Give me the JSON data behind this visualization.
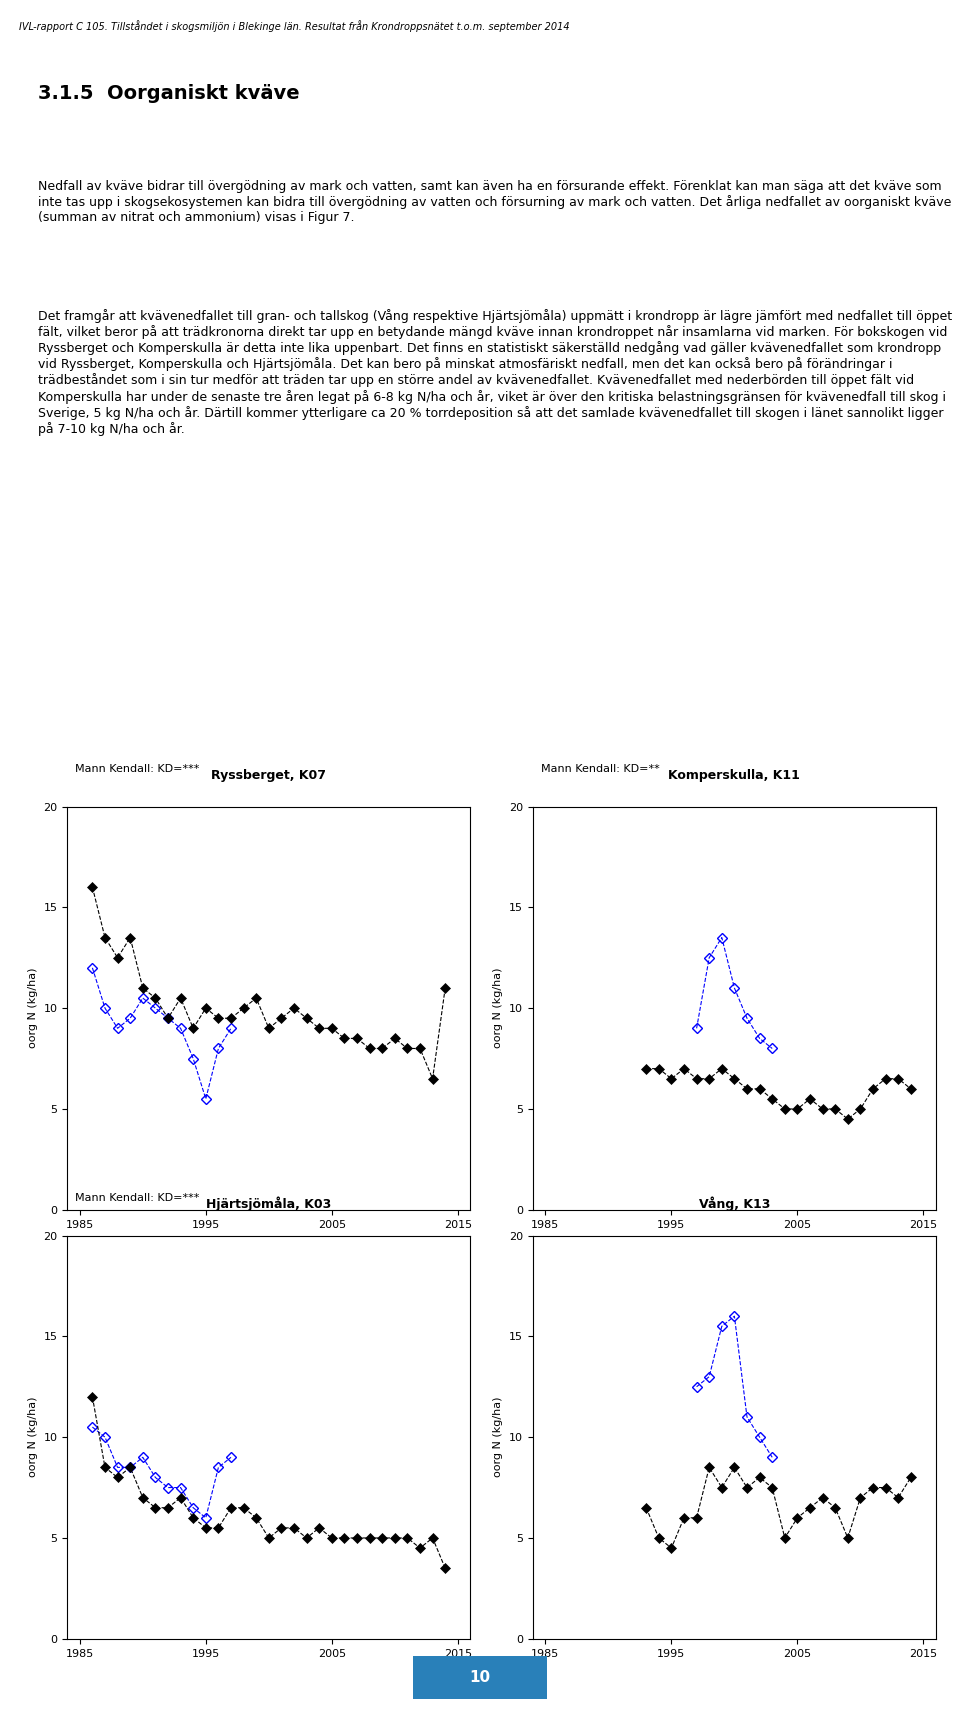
{
  "header": "IVL-rapport C 105. Tillståndet i skogsmiljön i Blekinge län. Resultat från Krondroppsnätet t.o.m. september 2014",
  "section_title": "3.1.5  Oorganiskt kväve",
  "body_text": [
    "Nedfall av kväve bidrar till övergödning av mark och vatten, samt kan även ha en försurande effekt. Förenklat kan man säga att det kväve som inte tas upp i skogsekosystemen kan bidra till övergödning av vatten och försurning av mark och vatten. Det årliga nedfallet av oorganiskt kväve (summan av nitrat och ammonium) visas i Figur 7.",
    "Det framgår att kvävenedfallet till gran- och tallskog (Vång respektive Hjärtsjömåla) uppmätt i krondropp är lägre jämfört med nedfallet till öppet fält, vilket beror på att trädkronorna direkt tar upp en betydande mängd kväve innan krondroppet når insamlarna vid marken. För bokskogen vid Ryssberget och Komperskulla är detta inte lika uppenbart. Det finns en statistiskt säkerställd nedgång vad gäller kvävenedfallet som krondropp vid Ryssberget, Komperskulla och Hjärtsjömåla. Det kan bero på minskat atmosfäriskt nedfall, men det kan också bero på förändringar i trädbeståndet som i sin tur medför att träden tar upp en större andel av kvävenedfallet. Kvävenedfallet med nederbörden till öppet fält vid Komperskulla har under de senaste tre åren legat på 6-8 kg N/ha och år, viket är över den kritiska belastningsgränsen för kvävenedfall till skog i Sverige, 5 kg N/ha och år. Därtill kommer ytterligare ca 20 % torrdeposition så att det samlade kvävenedfallet till skogen i länet sannolikt ligger på 7-10 kg N/ha och år."
  ],
  "plots": [
    {
      "title": "Ryssberget, K07",
      "subtitle": "Mann Kendall: KD=***",
      "black_years": [
        1986,
        1987,
        1988,
        1989,
        1990,
        1991,
        1992,
        1993,
        1994,
        1995,
        1996,
        1997,
        1998,
        1999,
        2000,
        2001,
        2002,
        2003,
        2004,
        2005,
        2006,
        2007,
        2008,
        2009,
        2010,
        2011,
        2012,
        2013,
        2014
      ],
      "black_values": [
        16.0,
        13.5,
        12.5,
        13.5,
        11.0,
        10.5,
        9.5,
        10.5,
        9.0,
        10.0,
        9.5,
        9.5,
        10.0,
        10.5,
        9.0,
        9.5,
        10.0,
        9.5,
        9.0,
        9.0,
        8.5,
        8.5,
        8.0,
        8.0,
        8.5,
        8.0,
        8.0,
        6.5,
        11.0
      ],
      "blue_years": [
        1986,
        1987,
        1988,
        1989,
        1990,
        1991,
        1992,
        1993,
        1994,
        1995,
        1996,
        1997
      ],
      "blue_values": [
        12.0,
        10.0,
        9.0,
        9.5,
        10.5,
        10.0,
        9.5,
        9.0,
        7.5,
        5.5,
        8.0,
        9.0
      ],
      "xlim": [
        1984,
        2016
      ],
      "ylim": [
        0,
        20
      ],
      "yticks": [
        0,
        5,
        10,
        15,
        20
      ],
      "xticks": [
        1985,
        1995,
        2005,
        2015
      ]
    },
    {
      "title": "Komperskulla, K11",
      "subtitle": "Mann Kendall: KD=**",
      "black_years": [
        1993,
        1994,
        1995,
        1996,
        1997,
        1998,
        1999,
        2000,
        2001,
        2002,
        2003,
        2004,
        2005,
        2006,
        2007,
        2008,
        2009,
        2010,
        2011,
        2012,
        2013,
        2014
      ],
      "black_values": [
        7.0,
        7.0,
        6.5,
        7.0,
        6.5,
        6.5,
        7.0,
        6.5,
        6.0,
        6.0,
        5.5,
        5.0,
        5.0,
        5.5,
        5.0,
        5.0,
        4.5,
        5.0,
        6.0,
        6.5,
        6.5,
        6.0
      ],
      "blue_years": [
        1997,
        1998,
        1999,
        2000,
        2001,
        2002,
        2003
      ],
      "blue_values": [
        9.0,
        12.5,
        13.5,
        11.0,
        9.5,
        8.5,
        8.0
      ],
      "xlim": [
        1984,
        2016
      ],
      "ylim": [
        0,
        20
      ],
      "yticks": [
        0,
        5,
        10,
        15,
        20
      ],
      "xticks": [
        1985,
        1995,
        2005,
        2015
      ]
    },
    {
      "title": "Hjärtsjömåla, K03",
      "subtitle": "Mann Kendall: KD=***",
      "black_years": [
        1986,
        1987,
        1988,
        1989,
        1990,
        1991,
        1992,
        1993,
        1994,
        1995,
        1996,
        1997,
        1998,
        1999,
        2000,
        2001,
        2002,
        2003,
        2004,
        2005,
        2006,
        2007,
        2008,
        2009,
        2010,
        2011,
        2012,
        2013,
        2014
      ],
      "black_values": [
        12.0,
        8.5,
        8.0,
        8.5,
        7.0,
        6.5,
        6.5,
        7.0,
        6.0,
        5.5,
        5.5,
        6.5,
        6.5,
        6.0,
        5.0,
        5.5,
        5.5,
        5.0,
        5.5,
        5.0,
        5.0,
        5.0,
        5.0,
        5.0,
        5.0,
        5.0,
        4.5,
        5.0,
        3.5
      ],
      "blue_years": [
        1986,
        1987,
        1988,
        1989,
        1990,
        1991,
        1992,
        1993,
        1994,
        1995,
        1996,
        1997
      ],
      "blue_values": [
        10.5,
        10.0,
        8.5,
        8.5,
        9.0,
        8.0,
        7.5,
        7.5,
        6.5,
        6.0,
        8.5,
        9.0
      ],
      "xlim": [
        1984,
        2016
      ],
      "ylim": [
        0,
        20
      ],
      "yticks": [
        0,
        5,
        10,
        15,
        20
      ],
      "xticks": [
        1985,
        1995,
        2005,
        2015
      ]
    },
    {
      "title": "Vång, K13",
      "subtitle": null,
      "black_years": [
        1993,
        1994,
        1995,
        1996,
        1997,
        1998,
        1999,
        2000,
        2001,
        2002,
        2003,
        2004,
        2005,
        2006,
        2007,
        2008,
        2009,
        2010,
        2011,
        2012,
        2013,
        2014
      ],
      "black_values": [
        6.5,
        5.0,
        4.5,
        6.0,
        6.0,
        8.5,
        7.5,
        8.5,
        7.5,
        8.0,
        7.5,
        5.0,
        6.0,
        6.5,
        7.0,
        6.5,
        5.0,
        7.0,
        7.5,
        7.5,
        7.0,
        8.0
      ],
      "blue_years": [
        1997,
        1998,
        1999,
        2000,
        2001,
        2002,
        2003
      ],
      "blue_values": [
        12.5,
        13.0,
        15.5,
        16.0,
        11.0,
        10.0,
        9.0
      ],
      "xlim": [
        1984,
        2016
      ],
      "ylim": [
        0,
        20
      ],
      "yticks": [
        0,
        5,
        10,
        15,
        20
      ],
      "xticks": [
        1985,
        1995,
        2005,
        2015
      ]
    }
  ],
  "ylabel": "oorg N (kg/ha)",
  "xlabel": "",
  "page_number": "10",
  "page_number_bg": "#2980b9",
  "background_color": "#ffffff"
}
